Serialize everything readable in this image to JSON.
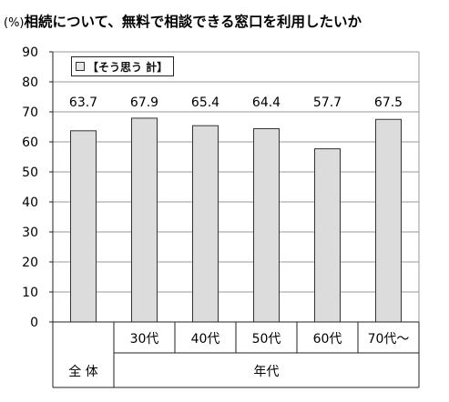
{
  "title": {
    "unit": "(%)",
    "text": "相続について、無料で相談できる窓口を利用したいか"
  },
  "legend": {
    "label": "【そう思う 計】"
  },
  "colors": {
    "bar_fill": "#dcdcdc",
    "bar_stroke": "#333333",
    "grid": "#999999",
    "axis": "#222222"
  },
  "chart_data": {
    "type": "bar",
    "categories": [
      "全 体",
      "30代",
      "40代",
      "50代",
      "60代",
      "70代～"
    ],
    "values": [
      63.7,
      67.9,
      65.4,
      64.4,
      57.7,
      67.5
    ],
    "data_labels": [
      "63.7",
      "67.9",
      "65.4",
      "64.4",
      "57.7",
      "67.5"
    ],
    "group_labels": [
      {
        "label": "全 体",
        "categories": [
          "全 体"
        ]
      },
      {
        "label": "年代",
        "categories": [
          "30代",
          "40代",
          "50代",
          "60代",
          "70代～"
        ]
      }
    ],
    "ylim": [
      0,
      90
    ],
    "yticks": [
      0,
      10,
      20,
      30,
      40,
      50,
      60,
      70,
      80,
      90
    ],
    "ytick_labels": [
      "0",
      "10",
      "20",
      "30",
      "40",
      "50",
      "60",
      "70",
      "80",
      "90"
    ],
    "grid": true,
    "legend_position": "top-left",
    "series": [
      {
        "name": "【そう思う 計】",
        "values": [
          63.7,
          67.9,
          65.4,
          64.4,
          57.7,
          67.5
        ]
      }
    ]
  }
}
